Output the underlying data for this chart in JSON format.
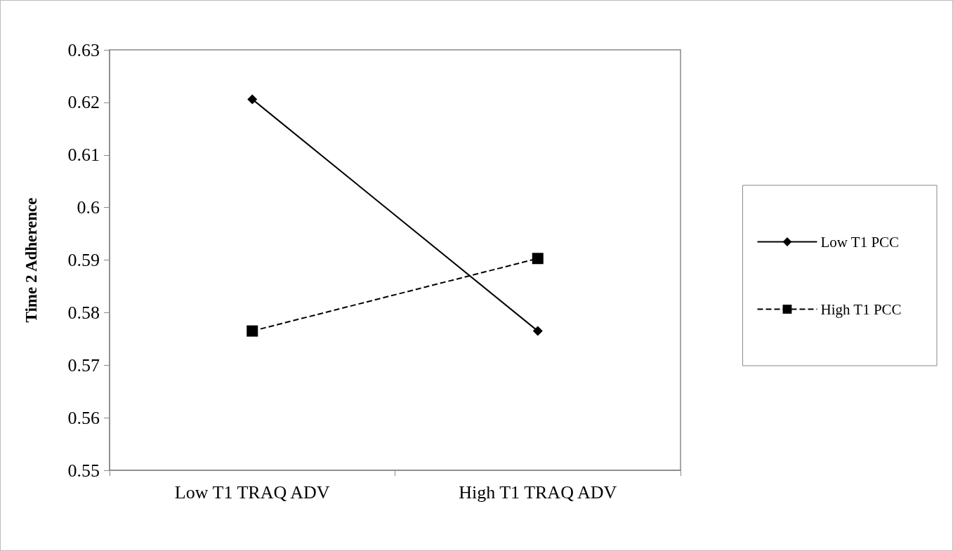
{
  "chart_data": {
    "type": "line",
    "ylabel": "Time 2 Adherence",
    "categories": [
      "Low T1 TRAQ ADV",
      "High T1 TRAQ ADV"
    ],
    "series": [
      {
        "name": "Low T1 PCC",
        "color": "#000000",
        "values": [
          0.6206,
          0.5765
        ],
        "marker": "diamond",
        "line_style": "solid"
      },
      {
        "name": "High T1 PCC",
        "color": "#000000",
        "values": [
          0.5765,
          0.5903
        ],
        "marker": "square",
        "line_style": "dashed"
      }
    ],
    "ylim": [
      0.55,
      0.63
    ],
    "yticks": [
      0.55,
      0.56,
      0.57,
      0.58,
      0.59,
      0.6,
      0.61,
      0.62,
      0.63
    ],
    "grid": false,
    "legend": "right"
  }
}
